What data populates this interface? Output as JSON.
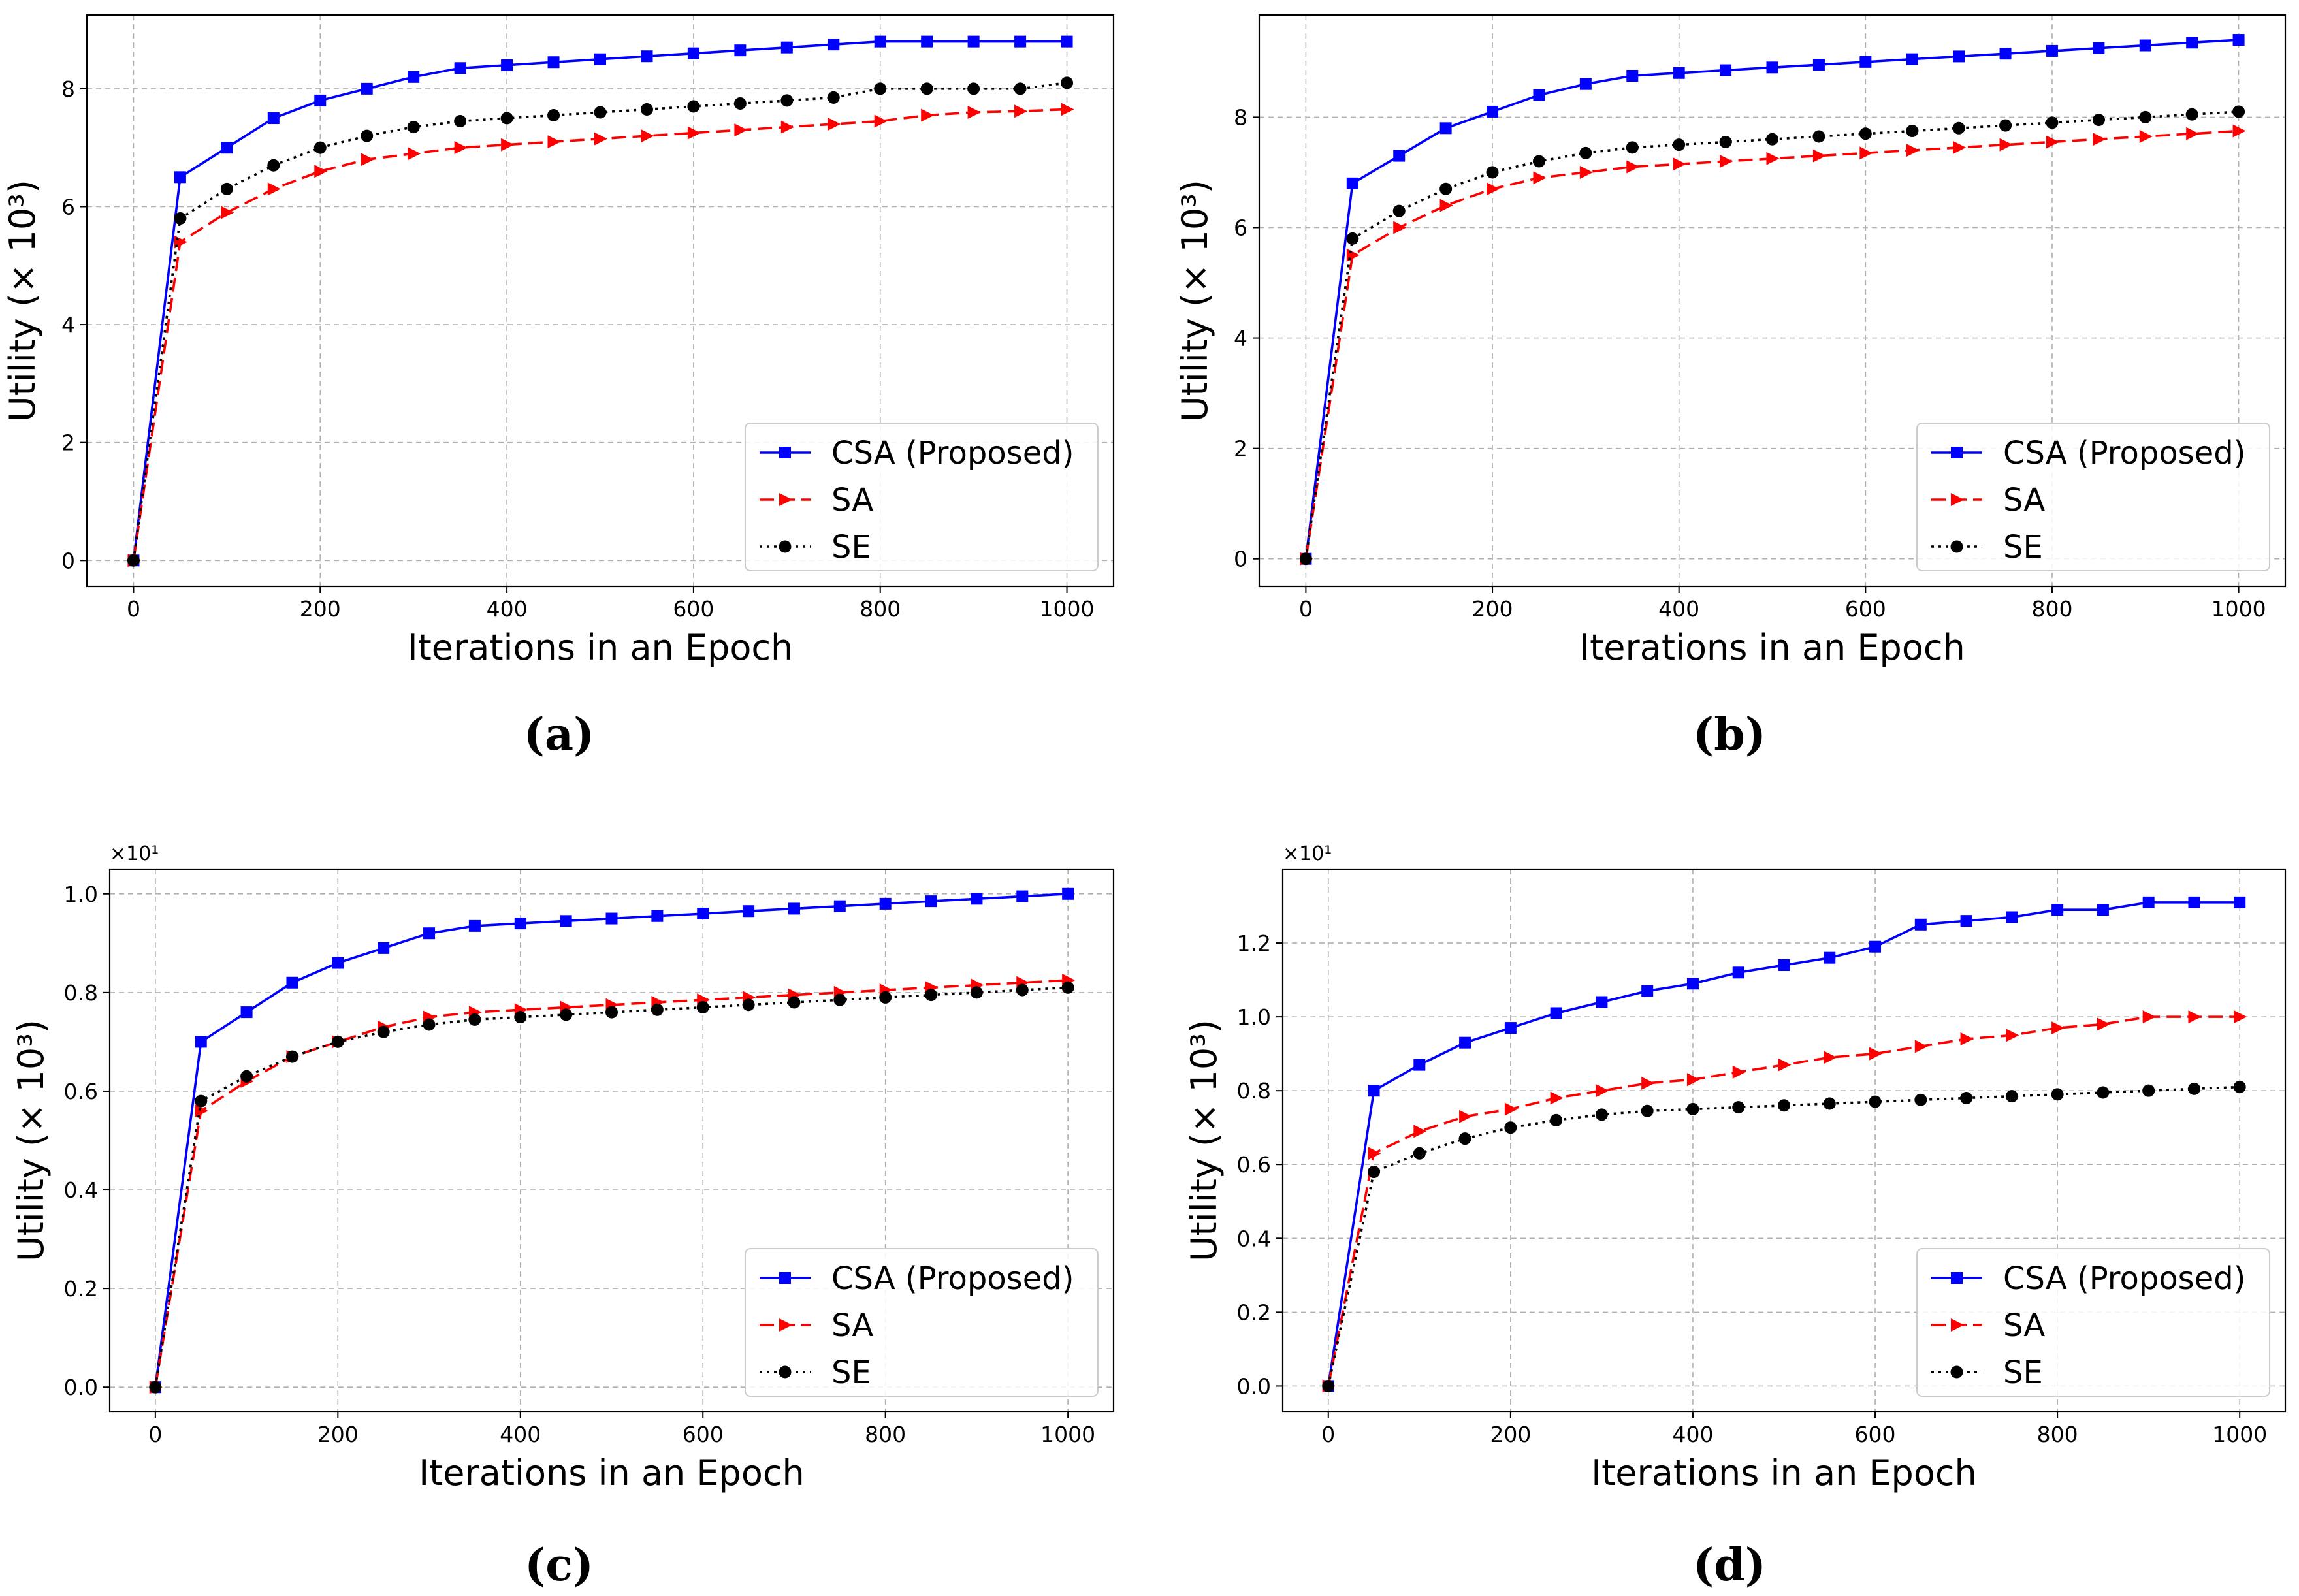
{
  "series_styles": {
    "CSA (Proposed)": {
      "color": "#0000ff",
      "marker": "square",
      "dash": "solid"
    },
    "SA": {
      "color": "#ff0000",
      "marker": "triangle-right",
      "dash": "dashed"
    },
    "SE": {
      "color": "#000000",
      "marker": "circle",
      "dash": "dotted"
    }
  },
  "chart_data": [
    {
      "panel": "(a)",
      "type": "line",
      "xlabel": "Iterations in an Epoch",
      "ylabel": "Utility (× 10³)",
      "xlim": [
        -50,
        1050
      ],
      "ylim": [
        -0.44,
        9.25
      ],
      "xticks": [
        "0",
        "200",
        "400",
        "600",
        "800",
        "1000"
      ],
      "yticks": [
        "0",
        "2",
        "4",
        "6",
        "8"
      ],
      "ytick_values": [
        0,
        2,
        4,
        6,
        8
      ],
      "offset_label": "",
      "grid": true,
      "legend": "lower right",
      "x": [
        0,
        50,
        100,
        150,
        200,
        250,
        300,
        350,
        400,
        450,
        500,
        550,
        600,
        650,
        700,
        750,
        800,
        850,
        900,
        950,
        1000
      ],
      "series": [
        {
          "name": "CSA (Proposed)",
          "values": [
            0,
            6.5,
            7.0,
            7.5,
            7.8,
            8.0,
            8.2,
            8.35,
            8.4,
            8.45,
            8.5,
            8.55,
            8.6,
            8.65,
            8.7,
            8.75,
            8.8,
            8.8,
            8.8,
            8.8,
            8.8
          ]
        },
        {
          "name": "SA",
          "values": [
            0,
            5.4,
            5.9,
            6.3,
            6.6,
            6.8,
            6.9,
            7.0,
            7.05,
            7.1,
            7.15,
            7.2,
            7.25,
            7.3,
            7.35,
            7.4,
            7.45,
            7.55,
            7.6,
            7.62,
            7.65
          ]
        },
        {
          "name": "SE",
          "values": [
            0,
            5.8,
            6.3,
            6.7,
            7.0,
            7.2,
            7.35,
            7.45,
            7.5,
            7.55,
            7.6,
            7.65,
            7.7,
            7.75,
            7.8,
            7.85,
            8.0,
            8.0,
            8.0,
            8.0,
            8.1
          ]
        }
      ]
    },
    {
      "panel": "(b)",
      "type": "line",
      "xlabel": "Iterations in an Epoch",
      "ylabel": "Utility (× 10³)",
      "xlim": [
        -50,
        1050
      ],
      "ylim": [
        -0.5,
        9.85
      ],
      "xticks": [
        "0",
        "200",
        "400",
        "600",
        "800",
        "1000"
      ],
      "yticks": [
        "0",
        "2",
        "4",
        "6",
        "8"
      ],
      "ytick_values": [
        0,
        2,
        4,
        6,
        8
      ],
      "offset_label": "",
      "grid": true,
      "legend": "lower right",
      "x": [
        0,
        50,
        100,
        150,
        200,
        250,
        300,
        350,
        400,
        450,
        500,
        550,
        600,
        650,
        700,
        750,
        800,
        850,
        900,
        950,
        1000
      ],
      "series": [
        {
          "name": "CSA (Proposed)",
          "values": [
            0,
            6.8,
            7.3,
            7.8,
            8.1,
            8.4,
            8.6,
            8.75,
            8.8,
            8.85,
            8.9,
            8.95,
            9.0,
            9.05,
            9.1,
            9.15,
            9.2,
            9.25,
            9.3,
            9.35,
            9.4
          ]
        },
        {
          "name": "SA",
          "values": [
            0,
            5.5,
            6.0,
            6.4,
            6.7,
            6.9,
            7.0,
            7.1,
            7.15,
            7.2,
            7.25,
            7.3,
            7.35,
            7.4,
            7.45,
            7.5,
            7.55,
            7.6,
            7.65,
            7.7,
            7.75
          ]
        },
        {
          "name": "SE",
          "values": [
            0,
            5.8,
            6.3,
            6.7,
            7.0,
            7.2,
            7.35,
            7.45,
            7.5,
            7.55,
            7.6,
            7.65,
            7.7,
            7.75,
            7.8,
            7.85,
            7.9,
            7.95,
            8.0,
            8.05,
            8.1
          ]
        }
      ]
    },
    {
      "panel": "(c)",
      "type": "line",
      "xlabel": "Iterations in an Epoch",
      "ylabel": "Utility (× 10³)",
      "xlim": [
        -50,
        1050
      ],
      "ylim": [
        -0.05,
        1.05
      ],
      "xticks": [
        "0",
        "200",
        "400",
        "600",
        "800",
        "1000"
      ],
      "yticks": [
        "0.0",
        "0.2",
        "0.4",
        "0.6",
        "0.8",
        "1.0"
      ],
      "ytick_values": [
        0,
        0.2,
        0.4,
        0.6,
        0.8,
        1.0
      ],
      "offset_label": "×10¹",
      "grid": true,
      "legend": "lower right",
      "x": [
        0,
        50,
        100,
        150,
        200,
        250,
        300,
        350,
        400,
        450,
        500,
        550,
        600,
        650,
        700,
        750,
        800,
        850,
        900,
        950,
        1000
      ],
      "series": [
        {
          "name": "CSA (Proposed)",
          "values": [
            0,
            0.7,
            0.76,
            0.82,
            0.86,
            0.89,
            0.92,
            0.935,
            0.94,
            0.945,
            0.95,
            0.955,
            0.96,
            0.965,
            0.97,
            0.975,
            0.98,
            0.985,
            0.99,
            0.995,
            1.0
          ]
        },
        {
          "name": "SA",
          "values": [
            0,
            0.56,
            0.62,
            0.67,
            0.7,
            0.73,
            0.75,
            0.76,
            0.765,
            0.77,
            0.775,
            0.78,
            0.785,
            0.79,
            0.795,
            0.8,
            0.805,
            0.81,
            0.815,
            0.82,
            0.825
          ]
        },
        {
          "name": "SE",
          "values": [
            0,
            0.58,
            0.63,
            0.67,
            0.7,
            0.72,
            0.735,
            0.745,
            0.75,
            0.755,
            0.76,
            0.765,
            0.77,
            0.775,
            0.78,
            0.785,
            0.79,
            0.795,
            0.8,
            0.805,
            0.81
          ]
        }
      ]
    },
    {
      "panel": "(d)",
      "type": "line",
      "xlabel": "Iterations in an Epoch",
      "ylabel": "Utility (× 10³)",
      "xlim": [
        -50,
        1050
      ],
      "ylim": [
        -0.07,
        1.4
      ],
      "xticks": [
        "0",
        "200",
        "400",
        "600",
        "800",
        "1000"
      ],
      "yticks": [
        "0.0",
        "0.2",
        "0.4",
        "0.6",
        "0.8",
        "1.0",
        "1.2"
      ],
      "ytick_values": [
        0,
        0.2,
        0.4,
        0.6,
        0.8,
        1.0,
        1.2
      ],
      "offset_label": "×10¹",
      "grid": true,
      "legend": "lower right",
      "x": [
        0,
        50,
        100,
        150,
        200,
        250,
        300,
        350,
        400,
        450,
        500,
        550,
        600,
        650,
        700,
        750,
        800,
        850,
        900,
        950,
        1000
      ],
      "series": [
        {
          "name": "CSA (Proposed)",
          "values": [
            0,
            0.8,
            0.87,
            0.93,
            0.97,
            1.01,
            1.04,
            1.07,
            1.09,
            1.12,
            1.14,
            1.16,
            1.19,
            1.25,
            1.26,
            1.27,
            1.29,
            1.29,
            1.31,
            1.31,
            1.31
          ]
        },
        {
          "name": "SA",
          "values": [
            0,
            0.63,
            0.69,
            0.73,
            0.75,
            0.78,
            0.8,
            0.82,
            0.83,
            0.85,
            0.87,
            0.89,
            0.9,
            0.92,
            0.94,
            0.95,
            0.97,
            0.98,
            1.0,
            1.0,
            1.0
          ]
        },
        {
          "name": "SE",
          "values": [
            0,
            0.58,
            0.63,
            0.67,
            0.7,
            0.72,
            0.735,
            0.745,
            0.75,
            0.755,
            0.76,
            0.765,
            0.77,
            0.775,
            0.78,
            0.785,
            0.79,
            0.795,
            0.8,
            0.805,
            0.81
          ]
        }
      ]
    }
  ]
}
